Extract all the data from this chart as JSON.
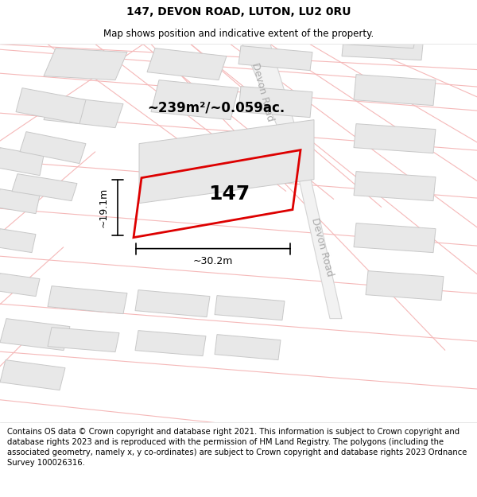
{
  "title": "147, DEVON ROAD, LUTON, LU2 0RU",
  "subtitle": "Map shows position and indicative extent of the property.",
  "area_text": "~239m²/~0.059ac.",
  "label_147": "147",
  "dim_width": "~30.2m",
  "dim_height": "~19.1m",
  "devon_road_label_top": "Devon Road",
  "devon_road_label_right": "Devon Road",
  "background_color": "#ffffff",
  "map_bg": "#ffffff",
  "building_fill": "#e8e8e8",
  "building_edge": "#c8c8c8",
  "road_line_color": "#f5b8b8",
  "devon_road_fill": "#f0f0f0",
  "devon_road_edge": "#d8d8d8",
  "red_polygon_color": "#dd0000",
  "footer_text": "Contains OS data © Crown copyright and database right 2021. This information is subject to Crown copyright and database rights 2023 and is reproduced with the permission of HM Land Registry. The polygons (including the associated geometry, namely x, y co-ordinates) are subject to Crown copyright and database rights 2023 Ordnance Survey 100026316.",
  "title_fontsize": 10,
  "subtitle_fontsize": 8.5,
  "footer_fontsize": 7.2,
  "area_fontsize": 12,
  "label_fontsize": 18,
  "dim_fontsize": 9,
  "devon_road_fontsize": 9,
  "road_lw": 0.8,
  "building_lw": 0.7
}
